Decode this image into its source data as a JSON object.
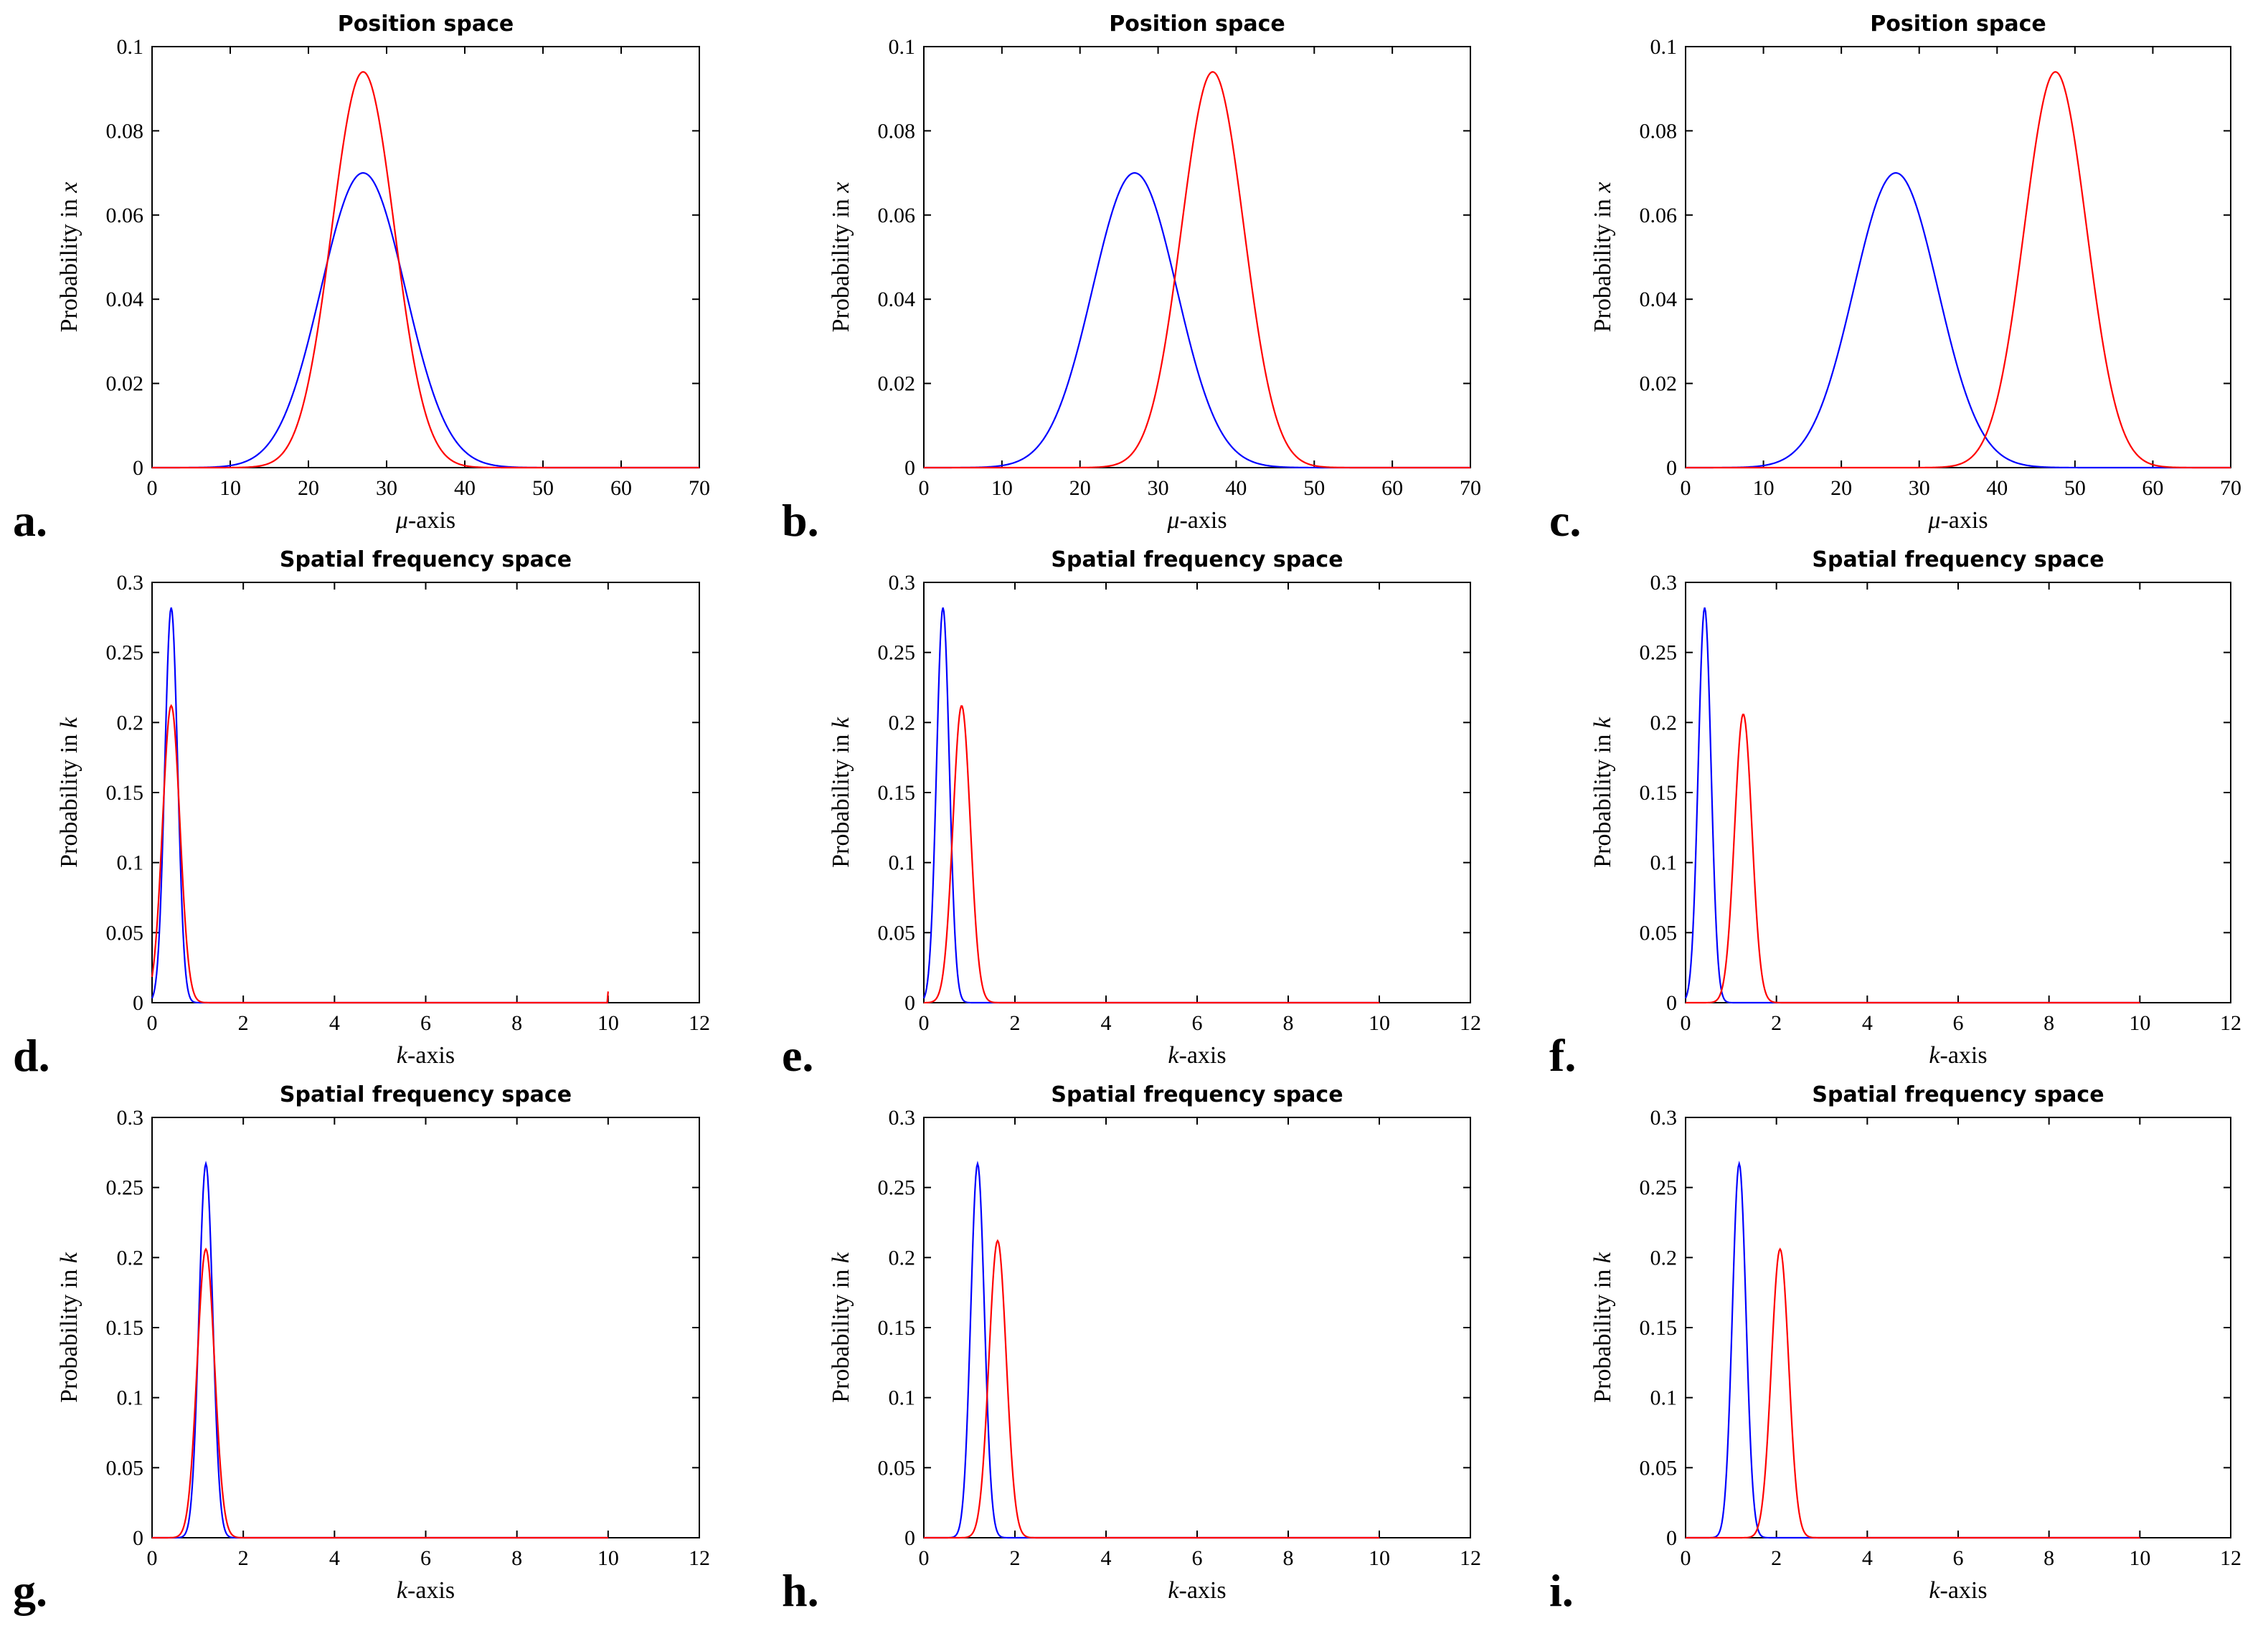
{
  "chart_data": [
    {
      "type": "line",
      "panel": "a.",
      "title": "Position space",
      "xlabel_italic": "μ",
      "xlabel_rest": "-axis",
      "ylabel_text": "Probability in ",
      "ylabel_var": "x",
      "xlim": [
        0,
        70
      ],
      "ylim": [
        0,
        0.1
      ],
      "xticks": [
        "0",
        "10",
        "20",
        "30",
        "40",
        "50",
        "60",
        "70"
      ],
      "yticks": [
        "0",
        "0.02",
        "0.04",
        "0.06",
        "0.08",
        "0.1"
      ],
      "series": [
        {
          "name": "blue",
          "color": "#0000ff",
          "peak_x": 27,
          "peak_y": 0.07,
          "sigma": 5.4
        },
        {
          "name": "red",
          "color": "#ff0000",
          "peak_x": 27,
          "peak_y": 0.094,
          "sigma": 4.0
        }
      ]
    },
    {
      "type": "line",
      "panel": "b.",
      "title": "Position space",
      "xlabel_italic": "μ",
      "xlabel_rest": "-axis",
      "ylabel_text": "Probability in ",
      "ylabel_var": "x",
      "xlim": [
        0,
        70
      ],
      "ylim": [
        0,
        0.1
      ],
      "xticks": [
        "0",
        "10",
        "20",
        "30",
        "40",
        "50",
        "60",
        "70"
      ],
      "yticks": [
        "0",
        "0.02",
        "0.04",
        "0.06",
        "0.08",
        "0.1"
      ],
      "series": [
        {
          "name": "blue",
          "color": "#0000ff",
          "peak_x": 27,
          "peak_y": 0.07,
          "sigma": 5.4
        },
        {
          "name": "red",
          "color": "#ff0000",
          "peak_x": 37,
          "peak_y": 0.094,
          "sigma": 4.0
        }
      ]
    },
    {
      "type": "line",
      "panel": "c.",
      "title": "Position space",
      "xlabel_italic": "μ",
      "xlabel_rest": "-axis",
      "ylabel_text": "Probability in ",
      "ylabel_var": "x",
      "xlim": [
        0,
        70
      ],
      "ylim": [
        0,
        0.1
      ],
      "xticks": [
        "0",
        "10",
        "20",
        "30",
        "40",
        "50",
        "60",
        "70"
      ],
      "yticks": [
        "0",
        "0.02",
        "0.04",
        "0.06",
        "0.08",
        "0.1"
      ],
      "series": [
        {
          "name": "blue",
          "color": "#0000ff",
          "peak_x": 27,
          "peak_y": 0.07,
          "sigma": 5.4
        },
        {
          "name": "red",
          "color": "#ff0000",
          "peak_x": 47.5,
          "peak_y": 0.094,
          "sigma": 4.0
        }
      ]
    },
    {
      "type": "line",
      "panel": "d.",
      "title": "Spatial frequency space",
      "xlabel_italic": "k",
      "xlabel_rest": "-axis",
      "ylabel_text": "Probability in ",
      "ylabel_var": "k",
      "xlim": [
        0,
        12
      ],
      "ylim": [
        0,
        0.3
      ],
      "xticks": [
        "0",
        "2",
        "4",
        "6",
        "8",
        "10",
        "12"
      ],
      "yticks": [
        "0",
        "0.05",
        "0.1",
        "0.15",
        "0.2",
        "0.25",
        "0.3"
      ],
      "series": [
        {
          "name": "blue",
          "color": "#0000ff",
          "peak_x": 0.42,
          "peak_y": 0.282,
          "sigma": 0.14,
          "xmax": 10
        },
        {
          "name": "red",
          "color": "#ff0000",
          "peak_x": 0.42,
          "peak_y": 0.212,
          "sigma": 0.19,
          "xmax": 10,
          "end_spike": 0.008
        }
      ]
    },
    {
      "type": "line",
      "panel": "e.",
      "title": "Spatial frequency space",
      "xlabel_italic": "k",
      "xlabel_rest": "-axis",
      "ylabel_text": "Probability in ",
      "ylabel_var": "k",
      "xlim": [
        0,
        12
      ],
      "ylim": [
        0,
        0.3
      ],
      "xticks": [
        "0",
        "2",
        "4",
        "6",
        "8",
        "10",
        "12"
      ],
      "yticks": [
        "0",
        "0.05",
        "0.1",
        "0.15",
        "0.2",
        "0.25",
        "0.3"
      ],
      "series": [
        {
          "name": "blue",
          "color": "#0000ff",
          "peak_x": 0.42,
          "peak_y": 0.282,
          "sigma": 0.14,
          "xmax": 10
        },
        {
          "name": "red",
          "color": "#ff0000",
          "peak_x": 0.83,
          "peak_y": 0.212,
          "sigma": 0.19,
          "xmax": 10
        }
      ]
    },
    {
      "type": "line",
      "panel": "f.",
      "title": "Spatial frequency space",
      "xlabel_italic": "k",
      "xlabel_rest": "-axis",
      "ylabel_text": "Probability in ",
      "ylabel_var": "k",
      "xlim": [
        0,
        12
      ],
      "ylim": [
        0,
        0.3
      ],
      "xticks": [
        "0",
        "2",
        "4",
        "6",
        "8",
        "10",
        "12"
      ],
      "yticks": [
        "0",
        "0.05",
        "0.1",
        "0.15",
        "0.2",
        "0.25",
        "0.3"
      ],
      "series": [
        {
          "name": "blue",
          "color": "#0000ff",
          "peak_x": 0.42,
          "peak_y": 0.282,
          "sigma": 0.14,
          "xmax": 10
        },
        {
          "name": "red",
          "color": "#ff0000",
          "peak_x": 1.27,
          "peak_y": 0.206,
          "sigma": 0.19,
          "xmax": 10
        }
      ]
    },
    {
      "type": "line",
      "panel": "g.",
      "title": "Spatial frequency space",
      "xlabel_italic": "k",
      "xlabel_rest": "-axis",
      "ylabel_text": "Probability in ",
      "ylabel_var": "k",
      "xlim": [
        0,
        12
      ],
      "ylim": [
        0,
        0.3
      ],
      "xticks": [
        "0",
        "2",
        "4",
        "6",
        "8",
        "10",
        "12"
      ],
      "yticks": [
        "0",
        "0.05",
        "0.1",
        "0.15",
        "0.2",
        "0.25",
        "0.3"
      ],
      "series": [
        {
          "name": "blue",
          "color": "#0000ff",
          "peak_x": 1.18,
          "peak_y": 0.267,
          "sigma": 0.15,
          "xmax": 10
        },
        {
          "name": "red",
          "color": "#ff0000",
          "peak_x": 1.18,
          "peak_y": 0.206,
          "sigma": 0.19,
          "xmax": 10
        }
      ]
    },
    {
      "type": "line",
      "panel": "h.",
      "title": "Spatial frequency space",
      "xlabel_italic": "k",
      "xlabel_rest": "-axis",
      "ylabel_text": "Probability in ",
      "ylabel_var": "k",
      "xlim": [
        0,
        12
      ],
      "ylim": [
        0,
        0.3
      ],
      "xticks": [
        "0",
        "2",
        "4",
        "6",
        "8",
        "10",
        "12"
      ],
      "yticks": [
        "0",
        "0.05",
        "0.1",
        "0.15",
        "0.2",
        "0.25",
        "0.3"
      ],
      "series": [
        {
          "name": "blue",
          "color": "#0000ff",
          "peak_x": 1.18,
          "peak_y": 0.267,
          "sigma": 0.15,
          "xmax": 10
        },
        {
          "name": "red",
          "color": "#ff0000",
          "peak_x": 1.62,
          "peak_y": 0.212,
          "sigma": 0.19,
          "xmax": 10
        }
      ]
    },
    {
      "type": "line",
      "panel": "i.",
      "title": "Spatial frequency space",
      "xlabel_italic": "k",
      "xlabel_rest": "-axis",
      "ylabel_text": "Probability in ",
      "ylabel_var": "k",
      "xlim": [
        0,
        12
      ],
      "ylim": [
        0,
        0.3
      ],
      "xticks": [
        "0",
        "2",
        "4",
        "6",
        "8",
        "10",
        "12"
      ],
      "yticks": [
        "0",
        "0.05",
        "0.1",
        "0.15",
        "0.2",
        "0.25",
        "0.3"
      ],
      "series": [
        {
          "name": "blue",
          "color": "#0000ff",
          "peak_x": 1.18,
          "peak_y": 0.267,
          "sigma": 0.15,
          "xmax": 10
        },
        {
          "name": "red",
          "color": "#ff0000",
          "peak_x": 2.08,
          "peak_y": 0.206,
          "sigma": 0.19,
          "xmax": 10
        }
      ]
    }
  ]
}
